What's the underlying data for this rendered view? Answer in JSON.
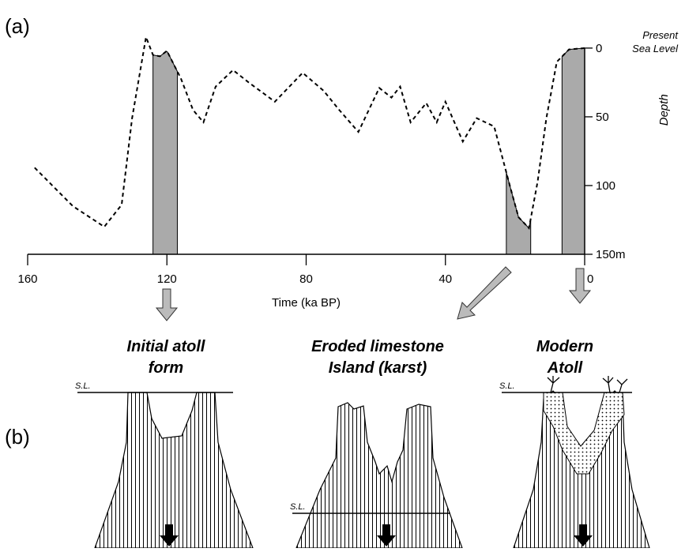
{
  "panel_a_label": "(a)",
  "panel_b_label": "(b)",
  "chart_data": {
    "type": "line",
    "x_label": "Time (ka BP)",
    "y_label": "Depth",
    "annotation": [
      "Present",
      "Sea Level"
    ],
    "x": [
      158,
      147,
      138,
      133,
      130,
      126,
      124,
      122,
      120,
      116,
      112.5,
      109.5,
      106,
      101,
      96.5,
      89,
      81,
      75,
      70.5,
      65,
      59,
      55.5,
      53,
      50,
      45.5,
      42.5,
      40,
      35,
      31,
      26,
      21.5,
      19,
      16,
      13.5,
      11,
      8,
      4.5,
      0
    ],
    "values": [
      87,
      115,
      130,
      114,
      51,
      -8,
      5,
      6,
      2,
      22,
      45,
      54,
      28,
      16,
      25,
      39,
      18,
      31,
      45,
      61,
      29,
      36,
      28,
      54,
      40,
      54,
      39,
      68,
      51,
      57,
      100,
      123,
      131,
      97,
      51,
      10,
      1,
      0
    ],
    "color": "#000000",
    "highlights": [
      [
        124,
        117
      ],
      [
        22.5,
        15.5
      ],
      [
        6.5,
        0
      ]
    ],
    "highlight_color": "#aaaaaa",
    "xlim": [
      160,
      0
    ],
    "ylim": [
      150,
      -12
    ],
    "xticks": [
      160,
      120,
      80,
      40,
      0
    ],
    "yticks": [
      0,
      50,
      100,
      {
        "value": 150,
        "label": "150m"
      }
    ]
  },
  "diagrams": [
    {
      "title": [
        "Initial atoll",
        "form"
      ],
      "sea_level": "S.L."
    },
    {
      "title": [
        "Eroded limestone",
        "Island (karst)"
      ],
      "sea_level": "S.L."
    },
    {
      "title": [
        "Modern",
        "Atoll"
      ],
      "sea_level": "S.L."
    }
  ]
}
